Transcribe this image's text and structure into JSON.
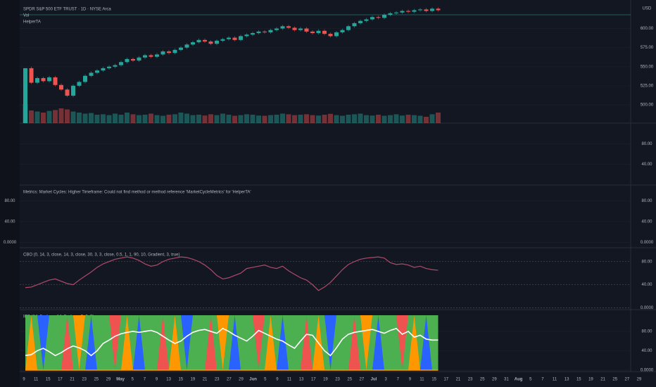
{
  "header": {
    "symbol": "SPDR S&P 500 ETF TRUST · 1D · NYSE Arca",
    "currency": "USD",
    "volume_label": "Vol",
    "indicator_label": "HelperTA"
  },
  "chart_data": {
    "type": "candlestick",
    "close": [
      548,
      529,
      535,
      531,
      536,
      526,
      520,
      512,
      525,
      530,
      538,
      542,
      545,
      548,
      550,
      552,
      556,
      560,
      558,
      562,
      565,
      563,
      566,
      570,
      568,
      572,
      575,
      579,
      582,
      585,
      583,
      580,
      584,
      586,
      588,
      585,
      590,
      592,
      594,
      596,
      595,
      598,
      600,
      603,
      601,
      598,
      600,
      596,
      594,
      597,
      593,
      590,
      595,
      598,
      603,
      607,
      610,
      612,
      615,
      614,
      618,
      620,
      621,
      623,
      622,
      624,
      625,
      623,
      626,
      624
    ],
    "volume": [
      90,
      60,
      55,
      50,
      58,
      62,
      70,
      65,
      55,
      50,
      45,
      48,
      40,
      42,
      38,
      45,
      40,
      50,
      42,
      38,
      40,
      45,
      38,
      35,
      40,
      42,
      50,
      45,
      38,
      40,
      36,
      42,
      38,
      45,
      40,
      35,
      38,
      42,
      40,
      36,
      35,
      38,
      40,
      45,
      42,
      38,
      40,
      42,
      38,
      36,
      40,
      44,
      38,
      35,
      40,
      42,
      45,
      38,
      36,
      40,
      35,
      38,
      42,
      36,
      40,
      38,
      35,
      30,
      42,
      50
    ],
    "ylim": [
      476,
      630
    ],
    "yticks": [
      {
        "value": 600,
        "label": "600.00"
      },
      {
        "value": 575,
        "label": "575.00"
      },
      {
        "value": 550,
        "label": "550.00"
      },
      {
        "value": 525,
        "label": "525.00"
      },
      {
        "value": 500,
        "label": "500.00"
      }
    ],
    "up_color": "#26a69a",
    "down_color": "#ef5350"
  },
  "panes": [
    {
      "title": null,
      "ylim": [
        0,
        120
      ],
      "yticks": [
        {
          "value": 80,
          "label": "80.00"
        },
        {
          "value": 40,
          "label": "40.00"
        }
      ]
    },
    {
      "title": "Metrics: Market Cycles: Higher Timeframe: Could not find method or method reference 'MarketCycleMetrics' for 'HelperTA'",
      "ylim": [
        -10,
        110
      ],
      "yticks": [
        {
          "value": 80,
          "label": "80.00"
        },
        {
          "value": 40,
          "label": "40.00"
        },
        {
          "value": 0,
          "label": "0.0000"
        }
      ]
    },
    {
      "title": "CBO (0, 14, 3, close, 14, 3, close, 30, 3, 3, close, 0.5, 1, 1, 90, 10, Gradient, 3, true)",
      "ylim": [
        -3,
        104
      ],
      "yticks": [
        {
          "value": 80,
          "label": "80.00"
        },
        {
          "value": 40,
          "label": "40.00"
        },
        {
          "value": 0,
          "label": "0.0000"
        }
      ],
      "values": [
        35,
        36,
        40,
        44,
        48,
        50,
        46,
        42,
        40,
        48,
        55,
        62,
        70,
        76,
        80,
        84,
        86,
        88,
        86,
        82,
        76,
        72,
        74,
        80,
        84,
        86,
        88,
        87,
        84,
        80,
        74,
        66,
        56,
        50,
        52,
        56,
        60,
        68,
        70,
        72,
        74,
        70,
        68,
        72,
        64,
        58,
        52,
        48,
        40,
        30,
        36,
        44,
        55,
        66,
        75,
        80,
        84,
        86,
        87,
        88,
        86,
        78,
        75,
        76,
        74,
        70,
        72,
        68,
        66,
        65
      ]
    },
    {
      "title": "ICB (14, 3, close, 14, 3, close, 3, 3, 3)",
      "ylim": [
        -3,
        125
      ],
      "yticks": [
        {
          "value": 80,
          "label": "80.00"
        },
        {
          "value": 40,
          "label": "40.00"
        },
        {
          "value": 0,
          "label": "0.0000"
        }
      ],
      "values": [
        30,
        32,
        40,
        45,
        38,
        30,
        36,
        44,
        50,
        46,
        40,
        30,
        40,
        55,
        62,
        70,
        75,
        78,
        80,
        78,
        80,
        82,
        78,
        70,
        62,
        55,
        60,
        70,
        78,
        82,
        84,
        80,
        76,
        86,
        80,
        72,
        66,
        60,
        70,
        82,
        76,
        70,
        64,
        60,
        52,
        45,
        60,
        74,
        72,
        56,
        40,
        30,
        46,
        64,
        74,
        78,
        80,
        82,
        84,
        80,
        76,
        82,
        86,
        74,
        80,
        68,
        72,
        64,
        62,
        62
      ]
    }
  ],
  "x_axis": [
    "9",
    "11",
    "15",
    "17",
    "21",
    "23",
    "25",
    "29",
    "May",
    "5",
    "7",
    "9",
    "13",
    "15",
    "19",
    "21",
    "23",
    "27",
    "29",
    "Jun",
    "5",
    "9",
    "11",
    "13",
    "17",
    "19",
    "23",
    "25",
    "27",
    "Jul",
    "3",
    "7",
    "9",
    "11",
    "15",
    "17",
    "21",
    "23",
    "25",
    "29",
    "31",
    "Aug",
    "5",
    "7",
    "11",
    "13",
    "15",
    "19",
    "21",
    "25",
    "27",
    "29"
  ]
}
